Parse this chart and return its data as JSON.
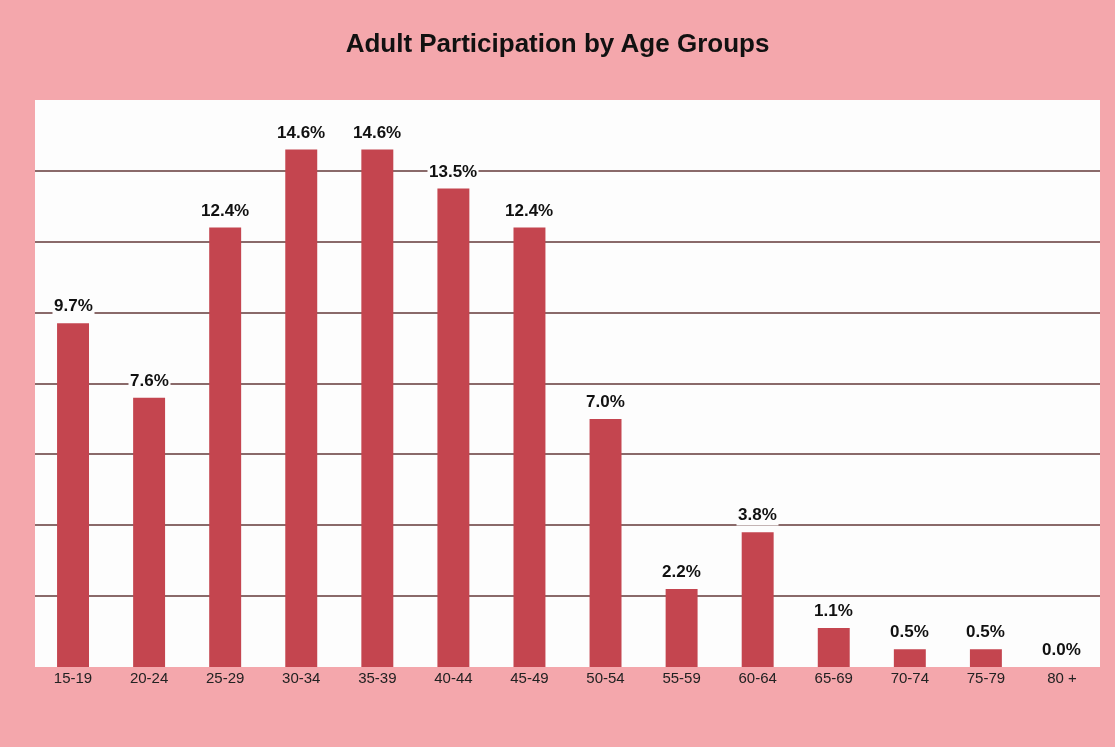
{
  "chart_data": {
    "type": "bar",
    "title": "Adult Participation by Age Groups",
    "categories": [
      "15-19",
      "20-24",
      "25-29",
      "30-34",
      "35-39",
      "40-44",
      "45-49",
      "50-54",
      "55-59",
      "60-64",
      "65-69",
      "70-74",
      "75-79",
      "80 +"
    ],
    "values": [
      9.7,
      7.6,
      12.4,
      14.6,
      14.6,
      13.5,
      12.4,
      7.0,
      2.2,
      3.8,
      1.1,
      0.5,
      0.5,
      0.0
    ],
    "value_labels": [
      "9.7%",
      "7.6%",
      "12.4%",
      "14.6%",
      "14.6%",
      "13.5%",
      "12.4%",
      "7.0%",
      "2.2%",
      "3.8%",
      "1.1%",
      "0.5%",
      "0.5%",
      "0.0%"
    ],
    "color": "#c4454f",
    "ylim": [
      0,
      16
    ],
    "yticks": [
      {
        "value": 0,
        "label": null
      },
      {
        "value": 2,
        "label": null
      },
      {
        "value": 4,
        "label": null
      },
      {
        "value": 6,
        "label": null
      },
      {
        "value": 8,
        "label": null
      },
      {
        "value": 10,
        "label": null
      },
      {
        "value": 12,
        "label": null
      },
      {
        "value": 14,
        "label": null
      },
      {
        "value": 16,
        "label": null
      }
    ],
    "grid": "y",
    "tick_labels": "x",
    "legend": false
  }
}
